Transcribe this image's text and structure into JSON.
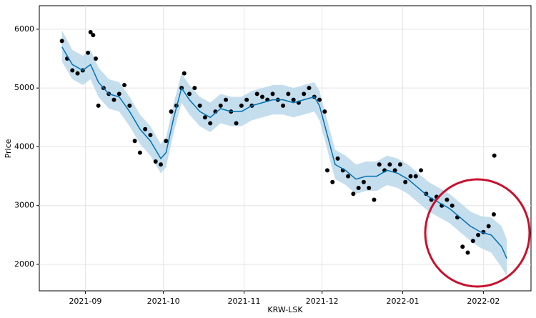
{
  "chart_data": {
    "type": "scatter",
    "xlabel": "KRW-LSK",
    "ylabel": "Price",
    "grid": true,
    "xlim": [
      -17.7,
      171.3
    ],
    "ylim": [
      1550,
      6400
    ],
    "xticks": [
      {
        "value": 0,
        "label": "2021-09"
      },
      {
        "value": 30,
        "label": "2021-10"
      },
      {
        "value": 61,
        "label": "2021-11"
      },
      {
        "value": 91,
        "label": "2021-12"
      },
      {
        "value": 122,
        "label": "2022-01"
      },
      {
        "value": 153,
        "label": "2022-02"
      }
    ],
    "yticks": [
      2000,
      3000,
      4000,
      5000,
      6000
    ],
    "color": "#000000",
    "x": [
      -9,
      -7,
      -5,
      -3,
      -1,
      1,
      2,
      3,
      4,
      5,
      7,
      9,
      11,
      13,
      15,
      17,
      19,
      21,
      23,
      25,
      27,
      29,
      31,
      33,
      35,
      37,
      38,
      40,
      42,
      44,
      46,
      48,
      50,
      52,
      54,
      56,
      58,
      60,
      62,
      64,
      66,
      68,
      70,
      72,
      74,
      76,
      78,
      80,
      82,
      84,
      86,
      88,
      90,
      92,
      93,
      95,
      97,
      99,
      101,
      103,
      105,
      107,
      109,
      111,
      113,
      115,
      117,
      119,
      121,
      123,
      125,
      127,
      129,
      131,
      133,
      135,
      137,
      139,
      141,
      143,
      145,
      147,
      149,
      151,
      153,
      155,
      157,
      157.2
    ],
    "values": [
      5800,
      5500,
      5300,
      5250,
      5300,
      5600,
      5950,
      5900,
      5500,
      4700,
      5000,
      4900,
      4800,
      4900,
      5050,
      4700,
      4100,
      3900,
      4300,
      4200,
      3750,
      3700,
      4100,
      4600,
      4700,
      5000,
      5250,
      4900,
      5000,
      4700,
      4500,
      4400,
      4600,
      4700,
      4800,
      4600,
      4400,
      4700,
      4800,
      4700,
      4900,
      4850,
      4800,
      4900,
      4800,
      4700,
      4900,
      4800,
      4750,
      4900,
      5000,
      4850,
      4800,
      4600,
      3600,
      3400,
      3800,
      3600,
      3500,
      3200,
      3300,
      3400,
      3300,
      3100,
      3700,
      3600,
      3700,
      3600,
      3700,
      3400,
      3500,
      3500,
      3600,
      3200,
      3100,
      3150,
      3000,
      3100,
      3000,
      2800,
      2300,
      2200,
      2400,
      2500,
      2550,
      2650,
      2850,
      3850
    ],
    "forecast": {
      "color": "#0072b2",
      "band_color": "#b6d6ea",
      "x": [
        -9,
        -5,
        -1,
        2,
        5,
        9,
        13,
        17,
        21,
        25,
        29,
        31,
        34,
        37,
        40,
        44,
        48,
        52,
        56,
        60,
        64,
        68,
        72,
        76,
        80,
        84,
        88,
        90,
        93,
        96,
        100,
        104,
        108,
        112,
        116,
        120,
        124,
        128,
        132,
        136,
        140,
        144,
        148,
        152,
        156,
        160,
        162
      ],
      "values": [
        5700,
        5400,
        5300,
        5400,
        5100,
        4900,
        4850,
        4600,
        4300,
        4100,
        3800,
        3900,
        4500,
        5000,
        4800,
        4600,
        4500,
        4650,
        4600,
        4600,
        4700,
        4750,
        4800,
        4800,
        4750,
        4800,
        4850,
        4700,
        4200,
        3700,
        3600,
        3450,
        3500,
        3500,
        3600,
        3550,
        3450,
        3300,
        3150,
        3050,
        2950,
        2800,
        2650,
        2550,
        2500,
        2300,
        2100
      ],
      "lower": [
        5450,
        5150,
        5050,
        5150,
        4850,
        4650,
        4600,
        4350,
        4050,
        3850,
        3550,
        3650,
        4250,
        4750,
        4550,
        4350,
        4250,
        4400,
        4350,
        4350,
        4450,
        4500,
        4550,
        4550,
        4500,
        4550,
        4600,
        4450,
        3950,
        3450,
        3350,
        3200,
        3250,
        3250,
        3350,
        3300,
        3200,
        3050,
        2900,
        2800,
        2700,
        2550,
        2400,
        2280,
        2200,
        1950,
        1800
      ],
      "upper": [
        5980,
        5650,
        5550,
        5650,
        5350,
        5150,
        5100,
        4850,
        4550,
        4350,
        4050,
        4150,
        4750,
        5250,
        5050,
        4850,
        4750,
        4900,
        4850,
        4850,
        4950,
        5000,
        5050,
        5050,
        5000,
        5050,
        5100,
        4950,
        4450,
        3950,
        3850,
        3700,
        3750,
        3750,
        3850,
        3800,
        3700,
        3550,
        3400,
        3300,
        3200,
        3050,
        2900,
        2820,
        2800,
        2650,
        2420
      ]
    }
  }
}
